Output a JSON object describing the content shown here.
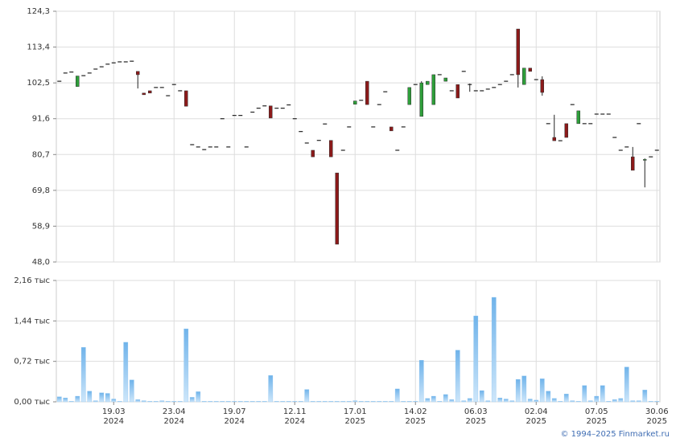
{
  "chart_data": [
    {
      "type": "candlestick",
      "up_color": "#2e9e3a",
      "down_color": "#8b1a1a",
      "flat_color": "#222222",
      "open": [
        103.0,
        105.5,
        105.8,
        101.4,
        104.7,
        105.5,
        106.7,
        107.4,
        108.2,
        108.6,
        108.9,
        108.9,
        109.1,
        106.0,
        99.4,
        100.1,
        101.1,
        101.1,
        98.6,
        102.0,
        100.1,
        100.1,
        83.7,
        83.0,
        82.2,
        83.0,
        83.0,
        91.6,
        83.0,
        92.6,
        92.6,
        83.0,
        93.6,
        94.8,
        95.5,
        95.5,
        94.8,
        94.8,
        95.8,
        91.6,
        87.7,
        84.2,
        82.0,
        85.0,
        90.0,
        85.0,
        75.1,
        82.0,
        89.1,
        96.0,
        97.2,
        103.0,
        89.1,
        95.9,
        99.8,
        89.1,
        82.0,
        89.1,
        95.9,
        102.0,
        92.3,
        102.0,
        95.9,
        105.0,
        103.0,
        100.1,
        102.0,
        106.0,
        102.0,
        100.1,
        100.1,
        100.6,
        101.1,
        102.0,
        103.0,
        105.0,
        118.9,
        102.0,
        107.0,
        103.5,
        103.5,
        90.1,
        85.9,
        84.9,
        90.1,
        95.9,
        90.1,
        90.1,
        90.1,
        93.0,
        93.0,
        93.0,
        85.9,
        82.0,
        83.0,
        80.0,
        90.1,
        79.0,
        80.0,
        82.0
      ],
      "high": [
        103.0,
        105.5,
        105.8,
        104.6,
        104.7,
        105.5,
        106.7,
        107.4,
        108.2,
        108.6,
        108.9,
        108.9,
        109.1,
        106.0,
        99.4,
        100.1,
        101.1,
        101.1,
        98.6,
        102.0,
        100.1,
        100.1,
        83.7,
        83.0,
        82.2,
        83.0,
        83.0,
        91.6,
        83.0,
        92.6,
        92.6,
        83.0,
        93.6,
        94.8,
        95.5,
        95.5,
        94.8,
        94.8,
        95.8,
        91.6,
        87.7,
        84.2,
        82.0,
        85.0,
        90.0,
        85.0,
        75.1,
        82.0,
        89.1,
        97.0,
        97.2,
        103.0,
        89.1,
        95.9,
        99.8,
        89.1,
        82.0,
        89.1,
        101.1,
        102.0,
        103.0,
        103.0,
        105.0,
        105.0,
        104.0,
        100.1,
        102.0,
        106.0,
        102.3,
        100.1,
        100.1,
        100.6,
        101.1,
        102.0,
        103.0,
        105.0,
        118.9,
        107.0,
        107.0,
        103.5,
        104.5,
        90.1,
        92.8,
        84.9,
        90.1,
        95.9,
        94.0,
        90.1,
        90.1,
        93.0,
        93.0,
        93.0,
        85.9,
        82.0,
        83.0,
        83.0,
        90.1,
        79.5,
        80.0,
        82.0
      ],
      "low": [
        103.0,
        105.5,
        105.8,
        101.4,
        104.7,
        105.5,
        106.7,
        107.4,
        108.2,
        108.6,
        108.9,
        108.9,
        109.1,
        100.8,
        98.9,
        99.4,
        101.1,
        101.1,
        98.6,
        102.0,
        100.1,
        95.4,
        83.7,
        83.0,
        82.2,
        83.0,
        83.0,
        91.6,
        83.0,
        92.6,
        92.6,
        83.0,
        93.6,
        94.8,
        95.5,
        91.8,
        94.8,
        94.8,
        95.8,
        91.6,
        87.7,
        84.2,
        80.0,
        85.0,
        90.0,
        80.0,
        53.4,
        82.0,
        89.1,
        96.0,
        97.2,
        95.9,
        89.1,
        95.9,
        99.8,
        87.9,
        82.0,
        89.1,
        95.9,
        102.0,
        92.3,
        102.0,
        95.9,
        105.0,
        103.0,
        100.1,
        97.9,
        106.0,
        99.8,
        100.1,
        100.1,
        100.6,
        101.1,
        102.0,
        103.0,
        105.0,
        101.1,
        102.0,
        106.0,
        103.5,
        98.6,
        90.1,
        84.9,
        84.9,
        85.9,
        95.9,
        90.1,
        90.1,
        90.1,
        93.0,
        93.0,
        93.0,
        85.9,
        82.0,
        83.0,
        75.9,
        90.1,
        70.7,
        80.0,
        82.0
      ],
      "close": [
        103.0,
        105.5,
        105.8,
        104.6,
        104.7,
        105.5,
        106.7,
        107.4,
        108.2,
        108.6,
        108.9,
        108.9,
        109.1,
        105.0,
        98.9,
        99.4,
        101.1,
        101.1,
        98.6,
        102.0,
        100.1,
        95.4,
        83.7,
        83.0,
        82.2,
        83.0,
        83.0,
        91.6,
        83.0,
        92.6,
        92.6,
        83.0,
        93.6,
        94.8,
        95.5,
        91.8,
        94.8,
        94.8,
        95.8,
        91.6,
        87.7,
        84.2,
        80.0,
        85.0,
        90.0,
        80.0,
        53.4,
        82.0,
        89.1,
        97.0,
        97.2,
        95.9,
        89.1,
        95.9,
        99.8,
        87.9,
        82.0,
        89.1,
        101.1,
        102.0,
        102.5,
        103.0,
        105.0,
        105.0,
        104.0,
        100.1,
        97.9,
        106.0,
        102.0,
        100.1,
        100.1,
        100.6,
        101.1,
        102.0,
        103.0,
        105.0,
        105.0,
        107.0,
        106.0,
        103.5,
        99.6,
        90.1,
        84.9,
        84.9,
        85.9,
        95.9,
        94.0,
        90.1,
        90.1,
        93.0,
        93.0,
        93.0,
        85.9,
        82.0,
        83.0,
        75.9,
        90.1,
        79.2,
        80.0,
        82.0
      ],
      "ylim": [
        48.0,
        124.3
      ],
      "yticks": [
        {
          "value": 48.0,
          "label": "48,0"
        },
        {
          "value": 58.9,
          "label": "58,9"
        },
        {
          "value": 69.8,
          "label": "69,8"
        },
        {
          "value": 80.7,
          "label": "80,7"
        },
        {
          "value": 91.6,
          "label": "91,6"
        },
        {
          "value": 102.5,
          "label": "102,5"
        },
        {
          "value": 113.4,
          "label": "113,4"
        },
        {
          "value": 124.3,
          "label": "124,3"
        }
      ],
      "grid": true
    },
    {
      "type": "bar",
      "color": "#8cc4ef",
      "categories": [
        null,
        null,
        null,
        null,
        null,
        null,
        null,
        null,
        null,
        "19.03\n2024",
        null,
        null,
        null,
        null,
        null,
        null,
        null,
        null,
        null,
        "23.04\n2024",
        null,
        null,
        null,
        null,
        null,
        null,
        null,
        null,
        null,
        "19.07\n2024",
        null,
        null,
        null,
        null,
        null,
        null,
        null,
        null,
        null,
        "12.11\n2024",
        null,
        null,
        null,
        null,
        null,
        null,
        null,
        null,
        null,
        "17.01\n2025",
        null,
        null,
        null,
        null,
        null,
        null,
        null,
        null,
        null,
        "14.02\n2025",
        null,
        null,
        null,
        null,
        null,
        null,
        null,
        null,
        null,
        "06.03\n2025",
        null,
        null,
        null,
        null,
        null,
        null,
        null,
        null,
        null,
        "02.04\n2025",
        null,
        null,
        null,
        null,
        null,
        null,
        null,
        null,
        null,
        "07.05\n2025",
        null,
        null,
        null,
        null,
        null,
        null,
        null,
        null,
        null,
        "30.06\n2025"
      ],
      "values": [
        0.09,
        0.07,
        0.01,
        0.1,
        0.97,
        0.19,
        0.02,
        0.16,
        0.15,
        0.05,
        0.01,
        1.06,
        0.39,
        0.04,
        0.02,
        0.01,
        0.01,
        0.02,
        0.01,
        0.01,
        0.01,
        1.3,
        0.08,
        0.18,
        0.01,
        0.01,
        0.01,
        0.01,
        0.01,
        0.01,
        0.01,
        0.01,
        0.01,
        0.01,
        0.01,
        0.47,
        0.01,
        0.01,
        0.01,
        0.01,
        0.01,
        0.22,
        0.01,
        0.01,
        0.01,
        0.01,
        0.01,
        0.01,
        0.01,
        0.02,
        0.01,
        0.01,
        0.01,
        0.01,
        0.01,
        0.01,
        0.23,
        0.01,
        0.01,
        0.01,
        0.74,
        0.06,
        0.1,
        0.01,
        0.13,
        0.04,
        0.92,
        0.02,
        0.06,
        1.53,
        0.2,
        0.02,
        1.86,
        0.07,
        0.05,
        0.02,
        0.4,
        0.46,
        0.05,
        0.03,
        0.41,
        0.19,
        0.06,
        0.01,
        0.14,
        0.02,
        0.01,
        0.29,
        0.02,
        0.1,
        0.29,
        0.01,
        0.04,
        0.06,
        0.62,
        0.02,
        0.02,
        0.21,
        0.01,
        0.01
      ],
      "ylim": [
        0,
        2.16
      ],
      "yticks": [
        {
          "value": 0,
          "label": "0,00 тыс"
        },
        {
          "value": 0.72,
          "label": "0,72 тыс"
        },
        {
          "value": 1.44,
          "label": "1,44 тыс"
        },
        {
          "value": 2.16,
          "label": "2,16 тыс"
        }
      ],
      "grid": true
    }
  ],
  "footer": "© 1994–2025 Finmarket.ru"
}
